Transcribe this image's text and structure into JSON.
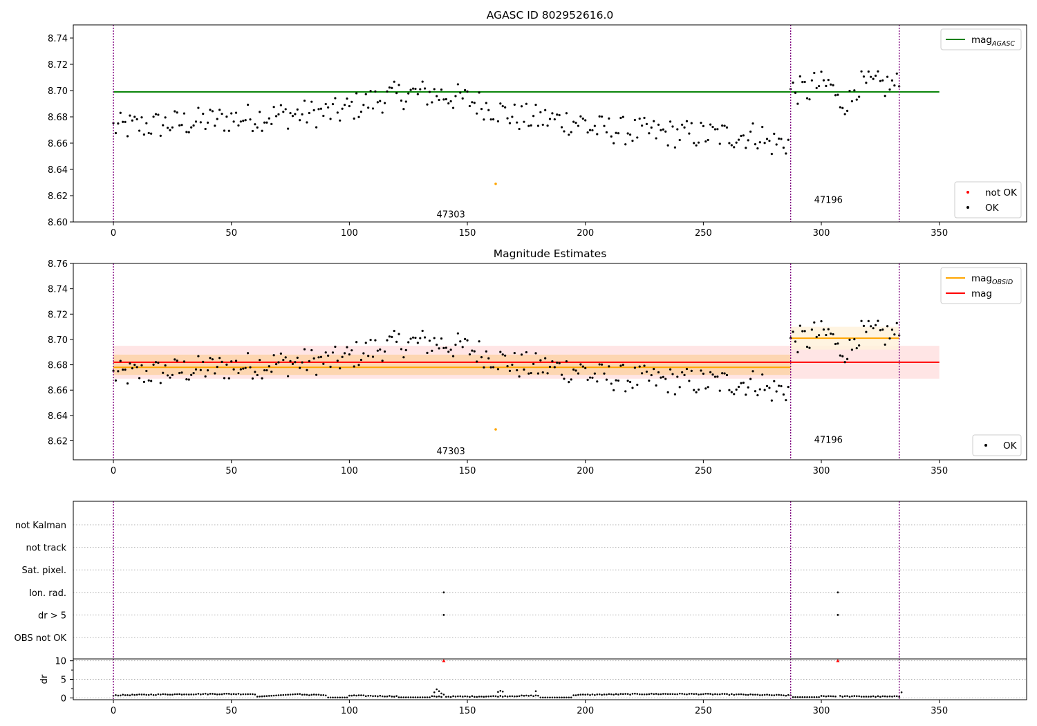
{
  "chart_data": [
    {
      "type": "scatter",
      "title": "AGASC ID 802952616.0",
      "xlabel": "",
      "ylabel": "",
      "xlim": [
        -17,
        387
      ],
      "ylim": [
        8.6,
        8.75
      ],
      "x_ticks": [
        0,
        50,
        100,
        150,
        200,
        250,
        300,
        350
      ],
      "y_ticks": [
        8.6,
        8.62,
        8.64,
        8.66,
        8.68,
        8.7,
        8.72,
        8.74
      ],
      "grid": false,
      "obsid_boundaries": [
        0,
        287,
        333
      ],
      "obsid_labels": [
        {
          "text": "47303",
          "x": 143,
          "y": 8.606
        },
        {
          "text": "47196",
          "x": 303,
          "y": 8.617
        }
      ],
      "hlines": [
        {
          "name": "mag_AGASC",
          "y": 8.699,
          "x": [
            0,
            350
          ],
          "color": "#008000"
        }
      ],
      "outliers": [
        {
          "x": 162,
          "y": 8.629,
          "color": "#ffa500"
        }
      ],
      "legends": [
        {
          "position": "upper-right",
          "entries": [
            {
              "label": "mag",
              "sub": "AGASC",
              "color": "#008000",
              "marker": "line"
            }
          ]
        },
        {
          "position": "lower-right",
          "entries": [
            {
              "label": "not OK",
              "color": "#ff0000",
              "marker": "dot"
            },
            {
              "label": "OK",
              "color": "#000000",
              "marker": "dot"
            }
          ]
        }
      ]
    },
    {
      "type": "scatter",
      "title": "Magnitude Estimates",
      "xlabel": "",
      "ylabel": "",
      "xlim": [
        -17,
        387
      ],
      "ylim": [
        8.605,
        8.76
      ],
      "x_ticks": [
        0,
        50,
        100,
        150,
        200,
        250,
        300,
        350
      ],
      "y_ticks": [
        8.62,
        8.64,
        8.66,
        8.68,
        8.7,
        8.72,
        8.74,
        8.76
      ],
      "grid": false,
      "obsid_boundaries": [
        0,
        287,
        333
      ],
      "obsid_labels": [
        {
          "text": "47303",
          "x": 143,
          "y": 8.612
        },
        {
          "text": "47196",
          "x": 303,
          "y": 8.621
        }
      ],
      "bands": [
        {
          "name": "mag",
          "x": [
            0,
            350
          ],
          "y": [
            8.669,
            8.695
          ],
          "color": "#ffe0e0"
        },
        {
          "name": "mag_OBSID 47303",
          "x": [
            0,
            287
          ],
          "y": [
            8.672,
            8.688
          ],
          "color": "#fdd3a8"
        },
        {
          "name": "mag_OBSID 47196",
          "x": [
            287,
            333
          ],
          "y": [
            8.692,
            8.71
          ],
          "color": "#fff2dc"
        }
      ],
      "hlines": [
        {
          "name": "mag_OBSID",
          "y": 8.678,
          "x": [
            0,
            287
          ],
          "color": "#ffa500"
        },
        {
          "name": "mag_OBSID",
          "y": 8.701,
          "x": [
            287,
            333
          ],
          "color": "#ffa500"
        },
        {
          "name": "mag",
          "y": 8.682,
          "x": [
            0,
            350
          ],
          "color": "#ff0000"
        }
      ],
      "outliers": [
        {
          "x": 162,
          "y": 8.629,
          "color": "#ffa500"
        }
      ],
      "legends": [
        {
          "position": "upper-right",
          "entries": [
            {
              "label": "mag",
              "sub": "OBSID",
              "color": "#ffa500",
              "marker": "line"
            },
            {
              "label": "mag",
              "color": "#ff0000",
              "marker": "line"
            }
          ]
        },
        {
          "position": "lower-right",
          "entries": [
            {
              "label": "OK",
              "color": "#000000",
              "marker": "dot"
            }
          ]
        }
      ]
    },
    {
      "type": "scatter",
      "title": "",
      "xlim": [
        -17,
        387
      ],
      "categories": [
        "not Kalman",
        "not track",
        "Sat. pixel.",
        "Ion. rad.",
        "dr > 5",
        "OBS not OK"
      ],
      "grid": "dotted",
      "obsid_boundaries": [
        0,
        287,
        333
      ],
      "flag_points": [
        {
          "category": "Ion. rad.",
          "x": [
            140,
            307
          ]
        },
        {
          "category": "dr > 5",
          "x": [
            140,
            307
          ]
        }
      ],
      "x_ticks": [
        0,
        50,
        100,
        150,
        200,
        250,
        300,
        350
      ]
    },
    {
      "type": "scatter",
      "title": "",
      "xlabel": "",
      "ylabel": "dr",
      "xlim": [
        -17,
        387
      ],
      "ylim": [
        -0.5,
        10.5
      ],
      "y_ticks": [
        0,
        5,
        10
      ],
      "x_ticks": [
        0,
        50,
        100,
        150,
        200,
        250,
        300,
        350
      ],
      "grid": "dotted",
      "obsid_boundaries": [
        0,
        287,
        333
      ],
      "clipped_points": [
        {
          "x": 140,
          "y": 10,
          "color": "#ff0000"
        },
        {
          "x": 307,
          "y": 10,
          "color": "#ff0000"
        }
      ],
      "spike_points": [
        {
          "x": 136,
          "y": 1.5
        },
        {
          "x": 137,
          "y": 2.3
        },
        {
          "x": 138,
          "y": 1.8
        },
        {
          "x": 139,
          "y": 1.2
        },
        {
          "x": 140,
          "y": 0.9
        },
        {
          "x": 163,
          "y": 1.6
        },
        {
          "x": 164,
          "y": 1.9
        },
        {
          "x": 165,
          "y": 1.7
        },
        {
          "x": 179,
          "y": 1.8
        },
        {
          "x": 334,
          "y": 1.5
        }
      ]
    }
  ]
}
